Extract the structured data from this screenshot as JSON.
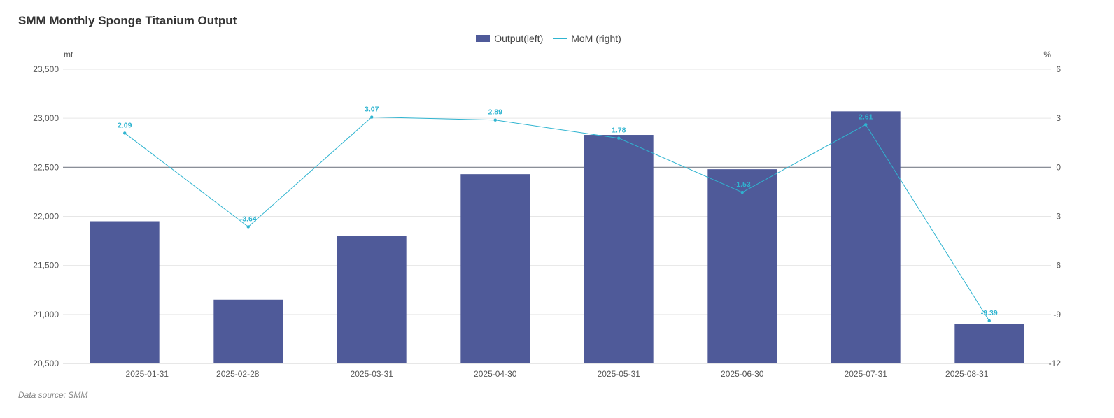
{
  "title": "SMM Monthly Sponge Titanium Output",
  "source_text": "Data source:  SMM",
  "colors": {
    "bar": "#4f5a99",
    "line": "#2fb4d0",
    "grid": "#e6e6e6",
    "zero": "#7a7f8a",
    "axis": "#cfcfcf"
  },
  "legend": {
    "bar_label": "Output(left)",
    "line_label": "MoM (right)"
  },
  "chart_data": {
    "type": "bar",
    "categories": [
      "2025-01-31",
      "2025-02-28",
      "2025-03-31",
      "2025-04-30",
      "2025-05-31",
      "2025-06-30",
      "2025-07-31",
      "2025-08-31"
    ],
    "series": [
      {
        "name": "Output(left)",
        "type": "bar",
        "axis": "left",
        "values": [
          21950,
          21150,
          21800,
          22430,
          22830,
          22480,
          23070,
          20900
        ]
      },
      {
        "name": "MoM (right)",
        "type": "line",
        "axis": "right",
        "values": [
          2.09,
          -3.64,
          3.07,
          2.89,
          1.78,
          -1.53,
          2.61,
          -9.39
        ]
      }
    ],
    "left_axis": {
      "unit": "mt",
      "ylim": [
        20500,
        23500
      ],
      "ticks": [
        "20,500",
        "21,000",
        "21,500",
        "22,000",
        "22,500",
        "23,000",
        "23,500"
      ]
    },
    "right_axis": {
      "unit": "%",
      "ylim": [
        -12,
        6
      ],
      "ticks": [
        "-12",
        "-9",
        "-6",
        "-3",
        "0",
        "3",
        "6"
      ]
    },
    "grid": true,
    "legend_position": "top-center"
  }
}
